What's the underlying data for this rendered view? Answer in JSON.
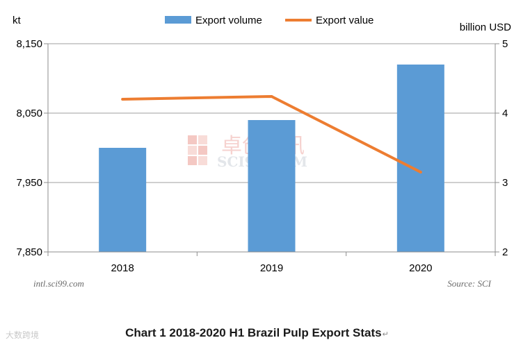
{
  "chart_data": {
    "type": "bar",
    "categories": [
      "2018",
      "2019",
      "2020"
    ],
    "series": [
      {
        "name": "Export volume",
        "type": "bar",
        "axis": "left",
        "values": [
          8000,
          8040,
          8120
        ],
        "color": "#5b9bd5"
      },
      {
        "name": "Export value",
        "type": "line",
        "axis": "right",
        "values": [
          4.2,
          4.24,
          3.15
        ],
        "color": "#ed7d31"
      }
    ],
    "left_axis": {
      "unit": "kt",
      "range": [
        7850,
        8150
      ],
      "ticks": [
        "7,850",
        "7,950",
        "8,050",
        "8,150"
      ]
    },
    "right_axis": {
      "unit": "billion USD",
      "range": [
        2,
        5
      ],
      "ticks": [
        "2",
        "3",
        "4",
        "5"
      ]
    },
    "grid": "horizontal",
    "legend": "top-center",
    "title": "Chart 1 2018-2020 H1 Brazil Pulp Export Stats"
  },
  "notes": {
    "website": "intl.sci99.com",
    "source": "Source: SCI",
    "return_mark": "↵"
  },
  "watermark": {
    "cn": "卓创资讯",
    "en": "SCI99.COM",
    "logo": "大数跨境"
  }
}
